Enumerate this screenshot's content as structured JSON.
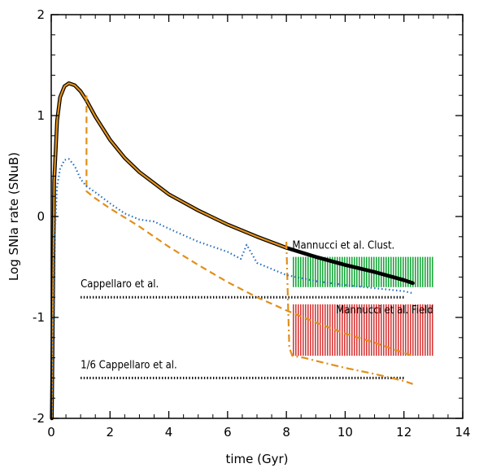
{
  "chart_data": {
    "type": "line",
    "xlabel": "time (Gyr)",
    "ylabel": "Log SNIa rate (SNuB)",
    "xlim": [
      0,
      14
    ],
    "ylim": [
      -2,
      2
    ],
    "x_ticks": [
      0,
      2,
      4,
      6,
      8,
      10,
      12,
      14
    ],
    "y_ticks": [
      -2,
      -1,
      0,
      1,
      2
    ],
    "x_tick_labels": [
      "0",
      "2",
      "4",
      "6",
      "8",
      "10",
      "12",
      "14"
    ],
    "y_tick_labels": [
      "-2",
      "-1",
      "0",
      "1",
      "2"
    ],
    "grid": false,
    "legend": "none",
    "series": [
      {
        "color": "#000000",
        "style": "solid-thick",
        "x": [
          0.02,
          0.1,
          0.2,
          0.3,
          0.45,
          0.6,
          0.8,
          1.0,
          1.2,
          1.5,
          2.0,
          2.5,
          3.0,
          3.5,
          4.0,
          5.0,
          6.0,
          7.0,
          8.0,
          9.0,
          10.0,
          11.0,
          12.0,
          12.3
        ],
        "y": [
          -2.0,
          0.35,
          0.95,
          1.18,
          1.29,
          1.32,
          1.3,
          1.24,
          1.15,
          0.99,
          0.76,
          0.58,
          0.44,
          0.33,
          0.22,
          0.06,
          -0.08,
          -0.2,
          -0.31,
          -0.4,
          -0.48,
          -0.55,
          -0.63,
          -0.66
        ]
      },
      {
        "color": "#e0901a",
        "style": "solid",
        "x": [
          0.02,
          0.1,
          0.2,
          0.3,
          0.45,
          0.6,
          0.8,
          1.0,
          1.2,
          1.5,
          2.0,
          2.5,
          3.0,
          3.5,
          4.0,
          5.0,
          6.0,
          7.0,
          8.0
        ],
        "y": [
          -2.0,
          0.35,
          0.95,
          1.18,
          1.29,
          1.32,
          1.3,
          1.24,
          1.15,
          0.99,
          0.76,
          0.58,
          0.44,
          0.33,
          0.22,
          0.06,
          -0.08,
          -0.2,
          -0.31
        ]
      },
      {
        "color": "#e0901a",
        "style": "dashed",
        "x": [
          1.2,
          1.2,
          1.5,
          2.0,
          3.0,
          4.0,
          5.0,
          6.0,
          7.0,
          8.0,
          9.0,
          10.0,
          11.0,
          12.0,
          12.3
        ],
        "y": [
          1.2,
          0.25,
          0.18,
          0.08,
          -0.1,
          -0.3,
          -0.48,
          -0.65,
          -0.8,
          -0.93,
          -1.05,
          -1.16,
          -1.25,
          -1.35,
          -1.38
        ]
      },
      {
        "color": "#e0901a",
        "style": "dash-dot",
        "x": [
          8.0,
          8.05,
          8.1,
          8.2,
          8.6,
          9.0,
          10.0,
          11.0,
          12.0,
          12.3
        ],
        "y": [
          -0.25,
          -0.8,
          -1.3,
          -1.38,
          -1.4,
          -1.43,
          -1.5,
          -1.56,
          -1.63,
          -1.66
        ]
      },
      {
        "color": "#2a6fbf",
        "style": "dotted",
        "x": [
          0.02,
          0.1,
          0.2,
          0.3,
          0.45,
          0.6,
          0.8,
          1.0,
          1.2,
          1.5,
          2.0,
          2.5,
          3.0,
          3.5,
          4.0,
          5.0,
          6.0,
          6.45,
          6.65,
          7.0,
          8.0,
          9.0,
          10.0,
          11.0,
          12.0,
          12.3
        ],
        "y": [
          -2.0,
          -0.3,
          0.3,
          0.47,
          0.56,
          0.57,
          0.5,
          0.37,
          0.3,
          0.24,
          0.13,
          0.03,
          -0.03,
          -0.05,
          -0.12,
          -0.25,
          -0.35,
          -0.42,
          -0.28,
          -0.46,
          -0.58,
          -0.64,
          -0.68,
          -0.71,
          -0.74,
          -0.76
        ]
      }
    ],
    "bands": [
      {
        "label": "Mannucci et al. Clust.",
        "x0": 8.2,
        "x1": 13.0,
        "y0": -0.4,
        "y1": -0.7,
        "color": "#18a83a"
      },
      {
        "label": "Mannucci et al. Field",
        "x0": 8.2,
        "x1": 13.0,
        "y0": -0.87,
        "y1": -1.38,
        "color": "#d83a3a"
      }
    ],
    "reference_lines": [
      {
        "label": "Cappellaro et al.",
        "x0": 1.0,
        "x1": 12.0,
        "y": -0.8
      },
      {
        "label": "1/6 Cappellaro et al.",
        "x0": 1.0,
        "x1": 12.0,
        "y": -1.6
      }
    ]
  }
}
